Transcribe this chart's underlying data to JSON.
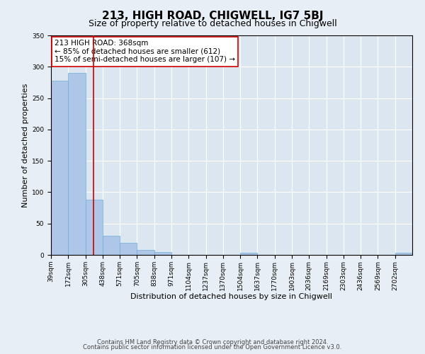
{
  "title": "213, HIGH ROAD, CHIGWELL, IG7 5BJ",
  "subtitle": "Size of property relative to detached houses in Chigwell",
  "bar_values": [
    278,
    290,
    88,
    30,
    19,
    8,
    5,
    0,
    0,
    0,
    0,
    3,
    0,
    0,
    0,
    0,
    0,
    0,
    0,
    0,
    3
  ],
  "bin_edges": [
    39,
    172,
    305,
    438,
    571,
    705,
    838,
    971,
    1104,
    1237,
    1370,
    1504,
    1637,
    1770,
    1903,
    2036,
    2169,
    2303,
    2436,
    2569,
    2702,
    2835
  ],
  "tick_labels": [
    "39sqm",
    "172sqm",
    "305sqm",
    "438sqm",
    "571sqm",
    "705sqm",
    "838sqm",
    "971sqm",
    "1104sqm",
    "1237sqm",
    "1370sqm",
    "1504sqm",
    "1637sqm",
    "1770sqm",
    "1903sqm",
    "2036sqm",
    "2169sqm",
    "2303sqm",
    "2436sqm",
    "2569sqm",
    "2702sqm"
  ],
  "bar_color": "#aec6e8",
  "bar_edgecolor": "#6baed6",
  "vline_x": 368,
  "vline_color": "#cc0000",
  "annotation_title": "213 HIGH ROAD: 368sqm",
  "annotation_line1": "← 85% of detached houses are smaller (612)",
  "annotation_line2": "15% of semi-detached houses are larger (107) →",
  "annotation_box_edgecolor": "#cc0000",
  "xlabel": "Distribution of detached houses by size in Chigwell",
  "ylabel": "Number of detached properties",
  "ylim": [
    0,
    350
  ],
  "yticks": [
    0,
    50,
    100,
    150,
    200,
    250,
    300,
    350
  ],
  "footer_line1": "Contains HM Land Registry data © Crown copyright and database right 2024.",
  "footer_line2": "Contains public sector information licensed under the Open Government Licence v3.0.",
  "bg_color": "#e8eef5",
  "plot_bg_color": "#dce6f0",
  "title_fontsize": 11,
  "subtitle_fontsize": 9,
  "axis_label_fontsize": 8,
  "tick_fontsize": 6.5,
  "annotation_fontsize": 7.5,
  "footer_fontsize": 6
}
